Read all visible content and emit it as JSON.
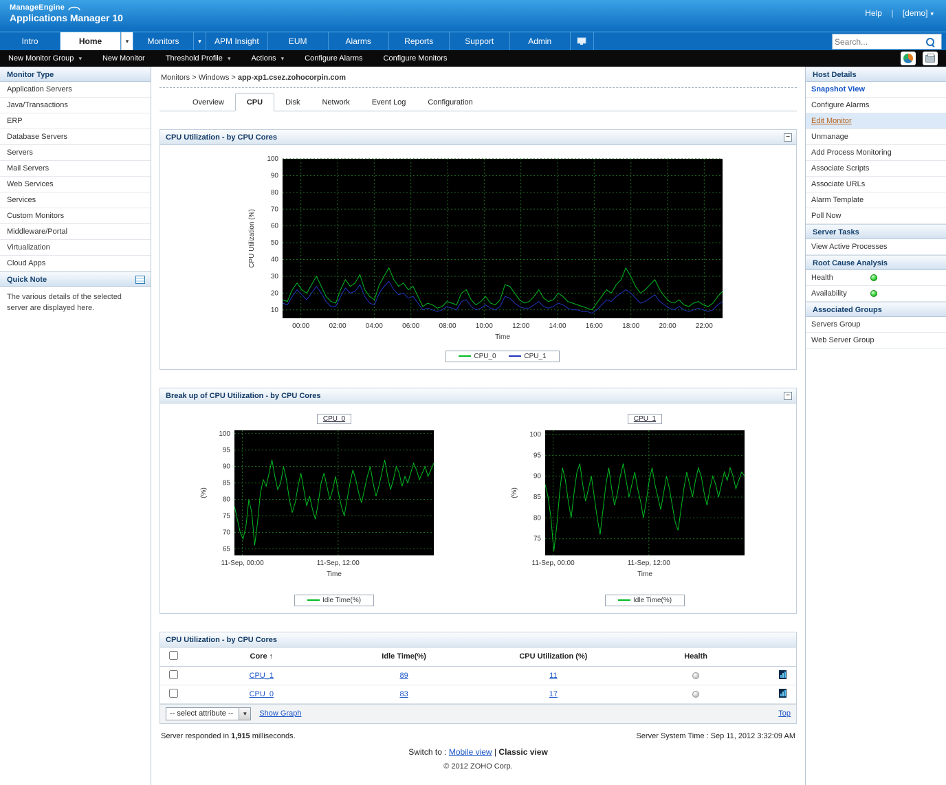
{
  "colors": {
    "accent_blue": "#0d6cbe",
    "link_blue": "#1a55c8",
    "status_ok_green": "#2ecc2e",
    "status_unknown_gray": "#cccccc",
    "chart_green": "#00bb22",
    "chart_blue": "#2233bb",
    "grid_green": "#1d6e1d",
    "plot_background": "#000000"
  },
  "header": {
    "brand_top": "ManageEngine",
    "brand_name": "Applications Manager 10",
    "help": "Help",
    "user": "[demo]",
    "search_placeholder": "Search...",
    "tabs": [
      "Intro",
      "Home",
      "Monitors",
      "APM Insight",
      "EUM",
      "Alarms",
      "Reports",
      "Support",
      "Admin"
    ],
    "active_tab": "Home"
  },
  "toolbar": {
    "items": [
      "New Monitor Group",
      "New Monitor",
      "Threshold Profile",
      "Actions",
      "Configure Alarms",
      "Configure Monitors"
    ]
  },
  "sidebar": {
    "monitor_type_title": "Monitor Type",
    "items": [
      "Application Servers",
      "Java/Transactions",
      "ERP",
      "Database Servers",
      "Servers",
      "Mail Servers",
      "Web Services",
      "Services",
      "Custom Monitors",
      "Middleware/Portal",
      "Virtualization",
      "Cloud Apps"
    ],
    "quick_note_title": "Quick Note",
    "quick_note_text": "The various details of the selected server are displayed here."
  },
  "breadcrumb": {
    "items": [
      "Monitors",
      "Windows"
    ],
    "host": "app-xp1.csez.zohocorpin.com"
  },
  "content_tabs": {
    "items": [
      "Overview",
      "CPU",
      "Disk",
      "Network",
      "Event Log",
      "Configuration"
    ],
    "active": "CPU"
  },
  "panels": {
    "breakup_title": "Break up of CPU Utilization - by CPU Cores"
  },
  "table": {
    "title": "CPU Utilization - by CPU Cores",
    "columns": [
      "Core",
      "Idle Time(%)",
      "CPU Utilization (%)",
      "Health"
    ],
    "sort_arrow": "↑",
    "rows": [
      {
        "core": "CPU_1",
        "idle": "89",
        "util": "11"
      },
      {
        "core": "CPU_0",
        "idle": "83",
        "util": "17"
      }
    ],
    "select_label": "-- select attribute --",
    "show_graph_label": "Show Graph",
    "top_label": "Top"
  },
  "right": {
    "host_details": {
      "title": "Host Details",
      "items": [
        "Snapshot View",
        "Configure Alarms",
        "Edit Monitor",
        "Unmanage",
        "Add Process Monitoring",
        "Associate Scripts",
        "Associate URLs",
        "Alarm Template",
        "Poll Now"
      ]
    },
    "server_tasks": {
      "title": "Server Tasks",
      "items": [
        "View Active Processes"
      ]
    },
    "root_cause": {
      "title": "Root Cause Analysis",
      "items": [
        "Health",
        "Availability"
      ]
    },
    "associated_groups": {
      "title": "Associated Groups",
      "items": [
        "Servers Group",
        "Web Server Group"
      ]
    }
  },
  "footer": {
    "responded_prefix": "Server responded in",
    "responded_value": "1,915",
    "responded_suffix": "milliseconds.",
    "server_time": "Server System Time : Sep 11, 2012 3:32:09 AM",
    "switch_prefix": "Switch to :",
    "mobile_view": "Mobile view",
    "divider": "|",
    "classic_view": "Classic view",
    "copyright": "© 2012 ZOHO Corp."
  },
  "chart_data": [
    {
      "type": "line",
      "title": "CPU Utilization - by CPU Cores",
      "xlabel": "Time",
      "ylabel": "CPU Utilization (%)",
      "ylim": [
        5,
        100
      ],
      "yticks": [
        10,
        20,
        30,
        40,
        50,
        60,
        70,
        80,
        90,
        100
      ],
      "xticks": [
        {
          "pos": 0.0417,
          "label": "00:00"
        },
        {
          "pos": 0.125,
          "label": "02:00"
        },
        {
          "pos": 0.2083,
          "label": "04:00"
        },
        {
          "pos": 0.2917,
          "label": "06:00"
        },
        {
          "pos": 0.375,
          "label": "08:00"
        },
        {
          "pos": 0.4583,
          "label": "10:00"
        },
        {
          "pos": 0.5417,
          "label": "12:00"
        },
        {
          "pos": 0.625,
          "label": "14:00"
        },
        {
          "pos": 0.7083,
          "label": "16:00"
        },
        {
          "pos": 0.7917,
          "label": "18:00"
        },
        {
          "pos": 0.875,
          "label": "20:00"
        },
        {
          "pos": 0.9583,
          "label": "22:00"
        }
      ],
      "grid": true,
      "legend_position": "bottom",
      "series": [
        {
          "name": "CPU_0",
          "color": "#00bb22",
          "values": [
            16,
            15,
            22,
            26,
            22,
            20,
            25,
            30,
            24,
            18,
            15,
            14,
            22,
            28,
            24,
            26,
            31,
            22,
            18,
            16,
            25,
            30,
            35,
            28,
            24,
            26,
            22,
            24,
            18,
            12,
            14,
            13,
            11,
            12,
            15,
            14,
            13,
            20,
            22,
            16,
            13,
            15,
            18,
            14,
            13,
            16,
            25,
            24,
            20,
            16,
            14,
            15,
            18,
            22,
            17,
            15,
            16,
            20,
            18,
            15,
            14,
            13,
            12,
            11,
            10,
            14,
            18,
            22,
            20,
            25,
            28,
            35,
            30,
            24,
            20,
            22,
            25,
            28,
            22,
            18,
            15,
            14,
            16,
            13,
            12,
            14,
            15,
            13,
            12,
            14,
            18,
            21
          ]
        },
        {
          "name": "CPU_1",
          "color": "#2233bb",
          "values": [
            14,
            13,
            18,
            22,
            19,
            16,
            20,
            24,
            20,
            15,
            12,
            12,
            18,
            23,
            20,
            21,
            25,
            18,
            14,
            13,
            20,
            24,
            27,
            22,
            19,
            20,
            17,
            18,
            14,
            10,
            11,
            10,
            9,
            10,
            12,
            11,
            10,
            15,
            16,
            12,
            10,
            11,
            13,
            11,
            10,
            12,
            18,
            17,
            14,
            12,
            11,
            11,
            13,
            15,
            12,
            11,
            12,
            14,
            13,
            11,
            10,
            10,
            9,
            9,
            8,
            10,
            13,
            16,
            15,
            18,
            20,
            22,
            20,
            17,
            14,
            15,
            17,
            19,
            15,
            13,
            11,
            10,
            12,
            10,
            9,
            10,
            11,
            10,
            9,
            10,
            13,
            15
          ]
        }
      ]
    },
    {
      "type": "line",
      "title": "CPU_0",
      "xlabel": "Time",
      "ylabel": "(%)",
      "ylim": [
        63,
        101
      ],
      "yticks": [
        65,
        70,
        75,
        80,
        85,
        90,
        95,
        100
      ],
      "xticks": [
        {
          "pos": 0.04,
          "label": "11-Sep, 00:00"
        },
        {
          "pos": 0.52,
          "label": "11-Sep, 12:00"
        }
      ],
      "grid": true,
      "legend_position": "bottom",
      "series": [
        {
          "name": "Idle Time(%)",
          "color": "#00bb22",
          "values": [
            78,
            74,
            70,
            68,
            72,
            80,
            76,
            66,
            73,
            82,
            86,
            84,
            88,
            92,
            87,
            83,
            85,
            90,
            86,
            80,
            76,
            79,
            84,
            88,
            83,
            78,
            81,
            77,
            74,
            79,
            85,
            88,
            84,
            80,
            83,
            87,
            82,
            78,
            75,
            80,
            85,
            89,
            86,
            82,
            79,
            83,
            87,
            90,
            85,
            81,
            84,
            88,
            92,
            87,
            83,
            86,
            90,
            88,
            84,
            87,
            85,
            88,
            91,
            89,
            86,
            88,
            90,
            87,
            89,
            91
          ]
        }
      ]
    },
    {
      "type": "line",
      "title": "CPU_1",
      "xlabel": "Time",
      "ylabel": "(%)",
      "ylim": [
        71,
        101
      ],
      "yticks": [
        75,
        80,
        85,
        90,
        95,
        100
      ],
      "xticks": [
        {
          "pos": 0.04,
          "label": "11-Sep, 00:00"
        },
        {
          "pos": 0.52,
          "label": "11-Sep, 12:00"
        }
      ],
      "grid": true,
      "legend_position": "bottom",
      "series": [
        {
          "name": "Idle Time(%)",
          "color": "#00bb22",
          "values": [
            88,
            85,
            80,
            72,
            78,
            86,
            92,
            89,
            84,
            80,
            86,
            91,
            93,
            88,
            84,
            87,
            90,
            85,
            80,
            76,
            82,
            88,
            92,
            87,
            83,
            86,
            90,
            93,
            89,
            85,
            88,
            91,
            87,
            84,
            80,
            84,
            89,
            92,
            88,
            85,
            82,
            86,
            90,
            87,
            83,
            79,
            77,
            82,
            87,
            91,
            88,
            85,
            89,
            92,
            90,
            86,
            83,
            87,
            90,
            88,
            85,
            88,
            91,
            89,
            92,
            90,
            87,
            89,
            91,
            90
          ]
        }
      ]
    }
  ]
}
